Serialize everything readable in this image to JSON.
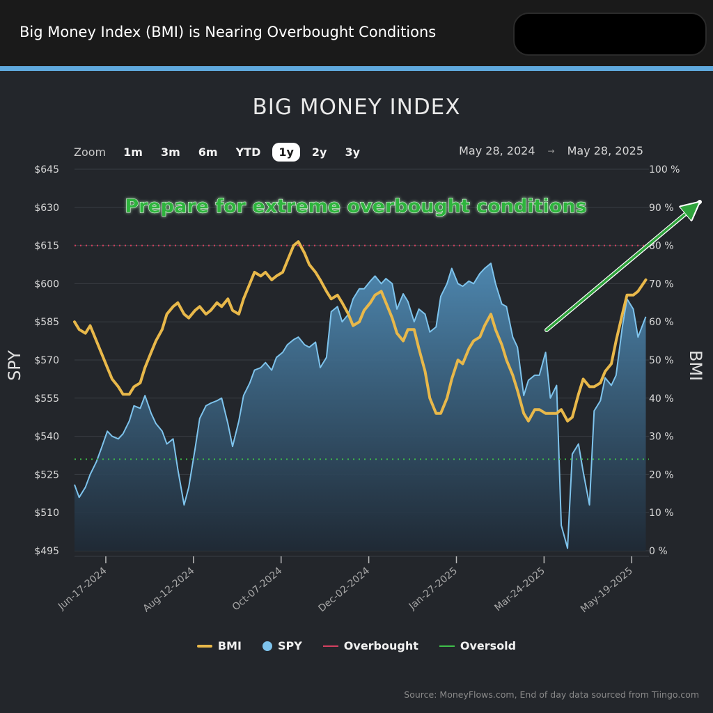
{
  "header": {
    "title": "Big Money Index (BMI) is Nearing Overbought Conditions"
  },
  "chart_data": {
    "type": "line",
    "title": "BIG MONEY INDEX",
    "zoom": {
      "label": "Zoom",
      "options": [
        "1m",
        "3m",
        "6m",
        "YTD",
        "1y",
        "2y",
        "3y"
      ],
      "selected": "1y"
    },
    "range": {
      "from": "May 28, 2024",
      "to": "May 28, 2025"
    },
    "left_axis": {
      "label": "SPY",
      "ticks": [
        "$495",
        "$510",
        "$525",
        "$540",
        "$555",
        "$570",
        "$585",
        "$600",
        "$615",
        "$630",
        "$645"
      ],
      "ylim": [
        495,
        645
      ]
    },
    "right_axis": {
      "label": "BMI",
      "ticks": [
        "0 %",
        "10 %",
        "20 %",
        "30 %",
        "40 %",
        "50 %",
        "60 %",
        "70 %",
        "80 %",
        "90 %",
        "100 %"
      ],
      "ylim": [
        0,
        100
      ]
    },
    "x_ticks": [
      "Jun-17-2024",
      "Aug-12-2024",
      "Oct-07-2024",
      "Dec-02-2024",
      "Jan-27-2025",
      "Mar-24-2025",
      "May-19-2025"
    ],
    "thresholds": {
      "overbought": 80,
      "oversold": 24
    },
    "annotation": "Prepare for extreme overbought conditions",
    "series": [
      {
        "name": "BMI",
        "axis": "right",
        "color": "#e8b84a",
        "points": [
          [
            "2024-05-28",
            60
          ],
          [
            "2024-05-31",
            58
          ],
          [
            "2024-06-04",
            57
          ],
          [
            "2024-06-07",
            59
          ],
          [
            "2024-06-11",
            55
          ],
          [
            "2024-06-14",
            52
          ],
          [
            "2024-06-18",
            48
          ],
          [
            "2024-06-21",
            45
          ],
          [
            "2024-06-25",
            43
          ],
          [
            "2024-06-28",
            41
          ],
          [
            "2024-07-02",
            41
          ],
          [
            "2024-07-05",
            43
          ],
          [
            "2024-07-09",
            44
          ],
          [
            "2024-07-12",
            48
          ],
          [
            "2024-07-16",
            52
          ],
          [
            "2024-07-19",
            55
          ],
          [
            "2024-07-23",
            58
          ],
          [
            "2024-07-26",
            62
          ],
          [
            "2024-07-30",
            64
          ],
          [
            "2024-08-02",
            65
          ],
          [
            "2024-08-06",
            62
          ],
          [
            "2024-08-09",
            61
          ],
          [
            "2024-08-13",
            63
          ],
          [
            "2024-08-16",
            64
          ],
          [
            "2024-08-20",
            62
          ],
          [
            "2024-08-23",
            63
          ],
          [
            "2024-08-27",
            65
          ],
          [
            "2024-08-30",
            64
          ],
          [
            "2024-09-03",
            66
          ],
          [
            "2024-09-06",
            63
          ],
          [
            "2024-09-10",
            62
          ],
          [
            "2024-09-13",
            66
          ],
          [
            "2024-09-17",
            70
          ],
          [
            "2024-09-20",
            73
          ],
          [
            "2024-09-24",
            72
          ],
          [
            "2024-09-27",
            73
          ],
          [
            "2024-10-01",
            71
          ],
          [
            "2024-10-04",
            72
          ],
          [
            "2024-10-08",
            73
          ],
          [
            "2024-10-11",
            76
          ],
          [
            "2024-10-15",
            80
          ],
          [
            "2024-10-18",
            81
          ],
          [
            "2024-10-22",
            78
          ],
          [
            "2024-10-25",
            75
          ],
          [
            "2024-10-29",
            73
          ],
          [
            "2024-11-01",
            71
          ],
          [
            "2024-11-05",
            68
          ],
          [
            "2024-11-08",
            66
          ],
          [
            "2024-11-12",
            67
          ],
          [
            "2024-11-15",
            65
          ],
          [
            "2024-11-19",
            62
          ],
          [
            "2024-11-22",
            59
          ],
          [
            "2024-11-26",
            60
          ],
          [
            "2024-11-29",
            63
          ],
          [
            "2024-12-03",
            65
          ],
          [
            "2024-12-06",
            67
          ],
          [
            "2024-12-10",
            68
          ],
          [
            "2024-12-13",
            65
          ],
          [
            "2024-12-17",
            61
          ],
          [
            "2024-12-20",
            57
          ],
          [
            "2024-12-24",
            55
          ],
          [
            "2024-12-27",
            58
          ],
          [
            "2024-12-31",
            58
          ],
          [
            "2025-01-03",
            53
          ],
          [
            "2025-01-07",
            47
          ],
          [
            "2025-01-10",
            40
          ],
          [
            "2025-01-14",
            36
          ],
          [
            "2025-01-17",
            36
          ],
          [
            "2025-01-21",
            40
          ],
          [
            "2025-01-24",
            45
          ],
          [
            "2025-01-28",
            50
          ],
          [
            "2025-01-31",
            49
          ],
          [
            "2025-02-04",
            53
          ],
          [
            "2025-02-07",
            55
          ],
          [
            "2025-02-11",
            56
          ],
          [
            "2025-02-14",
            59
          ],
          [
            "2025-02-18",
            62
          ],
          [
            "2025-02-21",
            58
          ],
          [
            "2025-02-25",
            54
          ],
          [
            "2025-02-28",
            50
          ],
          [
            "2025-03-04",
            46
          ],
          [
            "2025-03-07",
            42
          ],
          [
            "2025-03-11",
            36
          ],
          [
            "2025-03-14",
            34
          ],
          [
            "2025-03-18",
            37
          ],
          [
            "2025-03-21",
            37
          ],
          [
            "2025-03-25",
            36
          ],
          [
            "2025-03-28",
            36
          ],
          [
            "2025-04-01",
            36
          ],
          [
            "2025-04-04",
            37
          ],
          [
            "2025-04-08",
            34
          ],
          [
            "2025-04-11",
            35
          ],
          [
            "2025-04-15",
            41
          ],
          [
            "2025-04-18",
            45
          ],
          [
            "2025-04-22",
            43
          ],
          [
            "2025-04-25",
            43
          ],
          [
            "2025-04-29",
            44
          ],
          [
            "2025-05-02",
            47
          ],
          [
            "2025-05-06",
            49
          ],
          [
            "2025-05-09",
            55
          ],
          [
            "2025-05-13",
            62
          ],
          [
            "2025-05-16",
            67
          ],
          [
            "2025-05-20",
            67
          ],
          [
            "2025-05-23",
            68
          ],
          [
            "2025-05-28",
            71
          ]
        ]
      },
      {
        "name": "SPY",
        "axis": "left",
        "color": "#7ec3ec",
        "points": [
          [
            "2024-05-28",
            521
          ],
          [
            "2024-05-31",
            516
          ],
          [
            "2024-06-04",
            520
          ],
          [
            "2024-06-07",
            525
          ],
          [
            "2024-06-11",
            530
          ],
          [
            "2024-06-14",
            535
          ],
          [
            "2024-06-18",
            542
          ],
          [
            "2024-06-21",
            540
          ],
          [
            "2024-06-25",
            539
          ],
          [
            "2024-06-28",
            541
          ],
          [
            "2024-07-02",
            546
          ],
          [
            "2024-07-05",
            552
          ],
          [
            "2024-07-09",
            551
          ],
          [
            "2024-07-12",
            556
          ],
          [
            "2024-07-16",
            549
          ],
          [
            "2024-07-19",
            545
          ],
          [
            "2024-07-23",
            542
          ],
          [
            "2024-07-26",
            537
          ],
          [
            "2024-07-30",
            539
          ],
          [
            "2024-08-02",
            527
          ],
          [
            "2024-08-06",
            513
          ],
          [
            "2024-08-09",
            520
          ],
          [
            "2024-08-13",
            535
          ],
          [
            "2024-08-16",
            547
          ],
          [
            "2024-08-20",
            552
          ],
          [
            "2024-08-23",
            553
          ],
          [
            "2024-08-27",
            554
          ],
          [
            "2024-08-30",
            555
          ],
          [
            "2024-09-03",
            545
          ],
          [
            "2024-09-06",
            536
          ],
          [
            "2024-09-10",
            546
          ],
          [
            "2024-09-13",
            556
          ],
          [
            "2024-09-17",
            561
          ],
          [
            "2024-09-20",
            566
          ],
          [
            "2024-09-24",
            567
          ],
          [
            "2024-09-27",
            569
          ],
          [
            "2024-10-01",
            566
          ],
          [
            "2024-10-04",
            571
          ],
          [
            "2024-10-08",
            573
          ],
          [
            "2024-10-11",
            576
          ],
          [
            "2024-10-15",
            578
          ],
          [
            "2024-10-18",
            579
          ],
          [
            "2024-10-22",
            576
          ],
          [
            "2024-10-25",
            575
          ],
          [
            "2024-10-29",
            577
          ],
          [
            "2024-11-01",
            567
          ],
          [
            "2024-11-05",
            571
          ],
          [
            "2024-11-08",
            589
          ],
          [
            "2024-11-12",
            591
          ],
          [
            "2024-11-15",
            585
          ],
          [
            "2024-11-19",
            588
          ],
          [
            "2024-11-22",
            594
          ],
          [
            "2024-11-26",
            598
          ],
          [
            "2024-11-29",
            598
          ],
          [
            "2024-12-03",
            601
          ],
          [
            "2024-12-06",
            603
          ],
          [
            "2024-12-10",
            600
          ],
          [
            "2024-12-13",
            602
          ],
          [
            "2024-12-17",
            600
          ],
          [
            "2024-12-20",
            590
          ],
          [
            "2024-12-24",
            596
          ],
          [
            "2024-12-27",
            593
          ],
          [
            "2024-12-31",
            585
          ],
          [
            "2025-01-03",
            590
          ],
          [
            "2025-01-07",
            588
          ],
          [
            "2025-01-10",
            581
          ],
          [
            "2025-01-14",
            583
          ],
          [
            "2025-01-17",
            595
          ],
          [
            "2025-01-21",
            600
          ],
          [
            "2025-01-24",
            606
          ],
          [
            "2025-01-28",
            600
          ],
          [
            "2025-01-31",
            599
          ],
          [
            "2025-02-04",
            601
          ],
          [
            "2025-02-07",
            600
          ],
          [
            "2025-02-11",
            604
          ],
          [
            "2025-02-14",
            606
          ],
          [
            "2025-02-18",
            608
          ],
          [
            "2025-02-21",
            600
          ],
          [
            "2025-02-25",
            592
          ],
          [
            "2025-02-28",
            591
          ],
          [
            "2025-03-04",
            579
          ],
          [
            "2025-03-07",
            575
          ],
          [
            "2025-03-11",
            556
          ],
          [
            "2025-03-14",
            562
          ],
          [
            "2025-03-18",
            564
          ],
          [
            "2025-03-21",
            564
          ],
          [
            "2025-03-25",
            573
          ],
          [
            "2025-03-28",
            555
          ],
          [
            "2025-04-01",
            560
          ],
          [
            "2025-04-04",
            505
          ],
          [
            "2025-04-08",
            496
          ],
          [
            "2025-04-11",
            533
          ],
          [
            "2025-04-15",
            537
          ],
          [
            "2025-04-18",
            526
          ],
          [
            "2025-04-22",
            513
          ],
          [
            "2025-04-25",
            550
          ],
          [
            "2025-04-29",
            554
          ],
          [
            "2025-05-02",
            563
          ],
          [
            "2025-05-06",
            560
          ],
          [
            "2025-05-09",
            564
          ],
          [
            "2025-05-13",
            583
          ],
          [
            "2025-05-16",
            594
          ],
          [
            "2025-05-20",
            590
          ],
          [
            "2025-05-23",
            579
          ],
          [
            "2025-05-28",
            587
          ]
        ]
      }
    ],
    "legend": [
      {
        "name": "BMI",
        "style": "line",
        "color": "#e8b84a"
      },
      {
        "name": "SPY",
        "style": "dot",
        "color": "#7ec3ec"
      },
      {
        "name": "Overbought",
        "style": "thin-line",
        "color": "#d44060"
      },
      {
        "name": "Oversold",
        "style": "thin-line",
        "color": "#3fc04a"
      }
    ],
    "source": "Source: MoneyFlows.com, End of day data sourced from Tiingo.com"
  }
}
